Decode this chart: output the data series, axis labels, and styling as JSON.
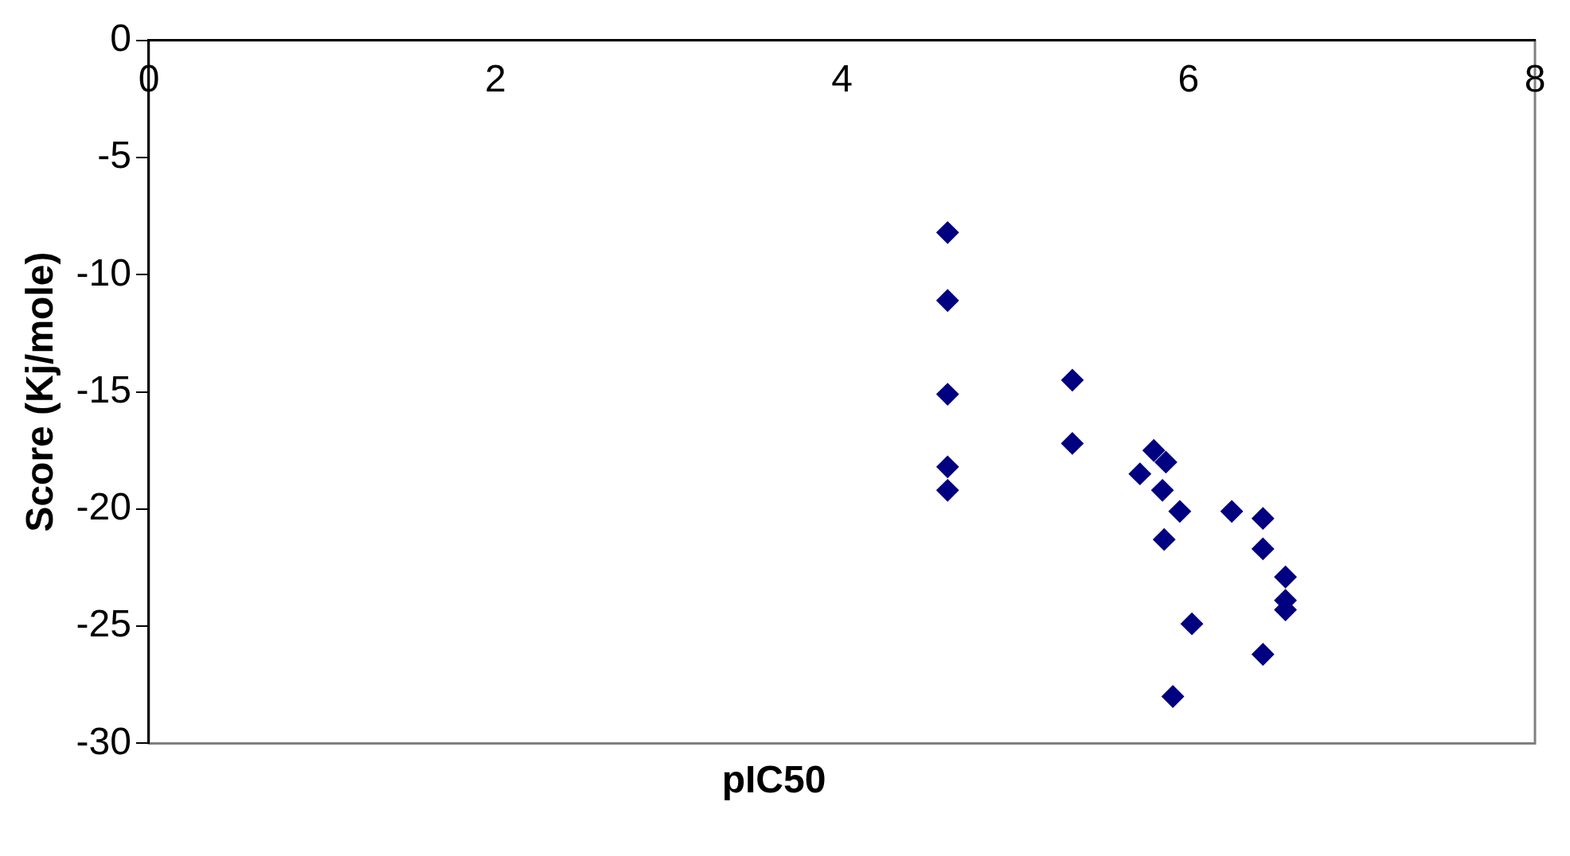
{
  "chart_data": {
    "type": "scatter",
    "xlabel": "pIC50",
    "ylabel": "Score (Kj/mole)",
    "x": [
      4.61,
      4.61,
      4.61,
      4.61,
      4.61,
      5.33,
      5.33,
      5.8,
      5.87,
      5.72,
      5.85,
      5.95,
      6.25,
      6.43,
      5.86,
      6.43,
      6.56,
      6.56,
      6.56,
      6.02,
      6.43,
      5.91
    ],
    "series": [
      {
        "color": "#000080",
        "values": [
          -8.2,
          -11.1,
          -15.1,
          -18.2,
          -19.2,
          -14.5,
          -17.2,
          -17.5,
          -18.0,
          -18.5,
          -19.2,
          -20.1,
          -20.1,
          -20.4,
          -21.3,
          -21.7,
          -22.9,
          -23.9,
          -24.3,
          -24.9,
          -26.2,
          -28.0
        ]
      }
    ],
    "xlim": [
      0,
      8
    ],
    "xticks": [
      0,
      2,
      4,
      6,
      8
    ],
    "ylim": [
      -30,
      0
    ],
    "yticks": [
      -30,
      -25,
      -20,
      -15,
      -10,
      -5,
      0
    ],
    "grid": false,
    "legend": false,
    "marker": "diamond"
  }
}
